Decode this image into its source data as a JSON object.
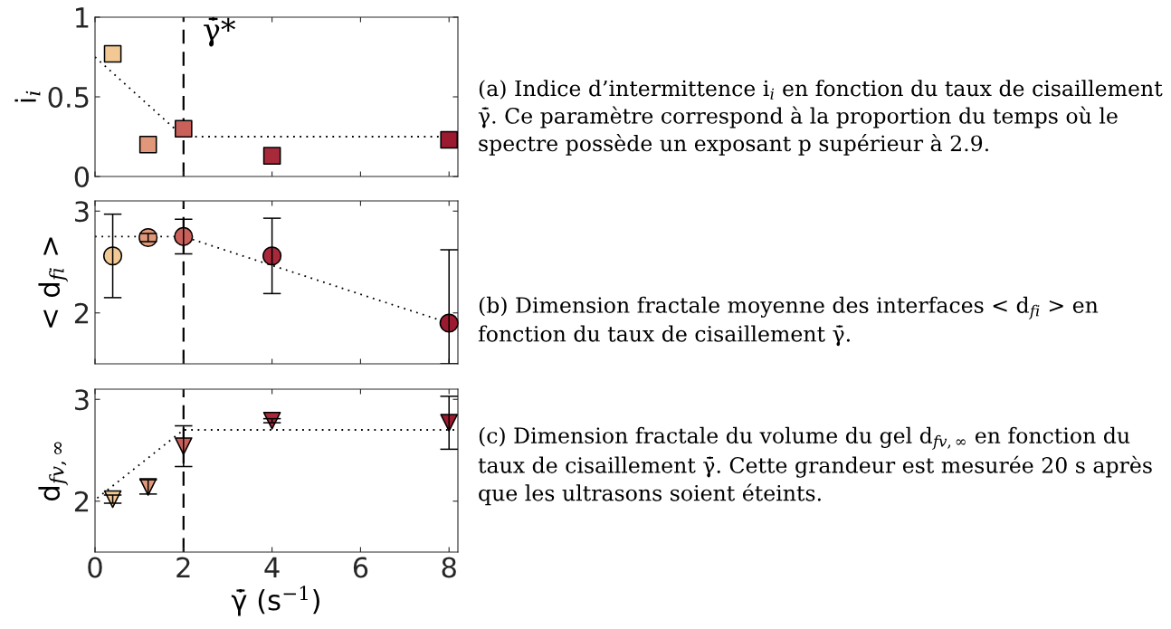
{
  "chart_data": [
    {
      "type": "scatter",
      "ylabel": "i$_{i}$",
      "x": [
        0.4,
        1.2,
        2,
        4,
        8
      ],
      "xlim": [
        0,
        8.2
      ],
      "xticks": [
        0,
        2,
        4,
        6,
        8
      ],
      "ylim": [
        0,
        1
      ],
      "yticks": [
        0,
        0.5,
        1
      ],
      "tick_labels": "y",
      "marker": "square",
      "series": [
        {
          "values": [
            0.77,
            0.2,
            0.3,
            0.13,
            0.23
          ],
          "colors": [
            "#f2c994",
            "#e0977a",
            "#c9605a",
            "#a82a3a",
            "#9c1a30"
          ]
        },
        {
          "type": "line",
          "x": [
            0,
            2,
            8.2
          ],
          "values": [
            0.75,
            0.25,
            0.25
          ],
          "color": "#000000",
          "line_style": "dotted",
          "marker": "none"
        }
      ],
      "ref_lines": [
        {
          "axis": "x",
          "value": 2,
          "label": "γ̄̇*",
          "color": "#000000",
          "line_style": "dashed"
        }
      ],
      "annotations": [
        "(a) Indice d’intermittence i$_{i}$ en fonction du taux de cisaillement γ̄̇. Ce paramètre correspond à la proportion du temps où le spectre possède un exposant p supérieur à 2.9."
      ]
    },
    {
      "type": "scatter",
      "ylabel": "< d$_{fi}$ >",
      "x": [
        0.4,
        1.2,
        2,
        4,
        8
      ],
      "xlim": [
        0,
        8.2
      ],
      "xticks": [
        0,
        2,
        4,
        6,
        8
      ],
      "ylim": [
        1.5,
        3.1
      ],
      "yticks": [
        2,
        3
      ],
      "tick_labels": "y",
      "marker": "circle",
      "series": [
        {
          "values": [
            2.56,
            2.74,
            2.75,
            2.56,
            1.9
          ],
          "errors": [
            0.41,
            0.04,
            0.17,
            0.37,
            [
              1.5,
              2.62
            ]
          ],
          "colors": [
            "#f2c994",
            "#e0977a",
            "#c9605a",
            "#a82a3a",
            "#9c1a30"
          ]
        },
        {
          "type": "line",
          "x": [
            0,
            2,
            8
          ],
          "values": [
            2.75,
            2.75,
            1.9
          ],
          "color": "#000000",
          "line_style": "dotted",
          "marker": "none"
        }
      ],
      "ref_lines": [
        {
          "axis": "x",
          "value": 2,
          "color": "#000000",
          "line_style": "dashed"
        }
      ],
      "annotations": [
        "(b) Dimension fractale moyenne des interfaces < d$_{fi}$ > en fonction du taux de cisaillement γ̄̇."
      ]
    },
    {
      "type": "scatter",
      "xlabel": "γ̄̇ (s$^{−1}$)",
      "ylabel": "d$_{fv,∞}$",
      "x": [
        0.4,
        1.2,
        2,
        4,
        8
      ],
      "xlim": [
        0,
        8.2
      ],
      "xticks": [
        0,
        2,
        4,
        6,
        8
      ],
      "ylim": [
        1.5,
        3.1
      ],
      "yticks": [
        2,
        3
      ],
      "marker": "triangle",
      "series": [
        {
          "values": [
            2.02,
            2.14,
            2.54,
            2.79,
            2.77
          ],
          "errors": [
            0.04,
            0.07,
            0.2,
            0.02,
            0.26
          ],
          "colors": [
            "#f2c994",
            "#e0977a",
            "#c9605a",
            "#a82a3a",
            "#9c1a30"
          ]
        },
        {
          "type": "line",
          "x": [
            0.05,
            2,
            8.2
          ],
          "values": [
            2.03,
            2.7,
            2.7
          ],
          "color": "#000000",
          "line_style": "dotted",
          "marker": "none"
        }
      ],
      "ref_lines": [
        {
          "axis": "x",
          "value": 2,
          "color": "#000000",
          "line_style": "dashed"
        }
      ],
      "annotations": [
        "(c) Dimension fractale du volume du gel d$_{fv,∞}$ en fonction du taux de cisaillement γ̄̇. Cette grandeur est mesurée 20 s après que les ultrasons soient éteints."
      ]
    }
  ]
}
